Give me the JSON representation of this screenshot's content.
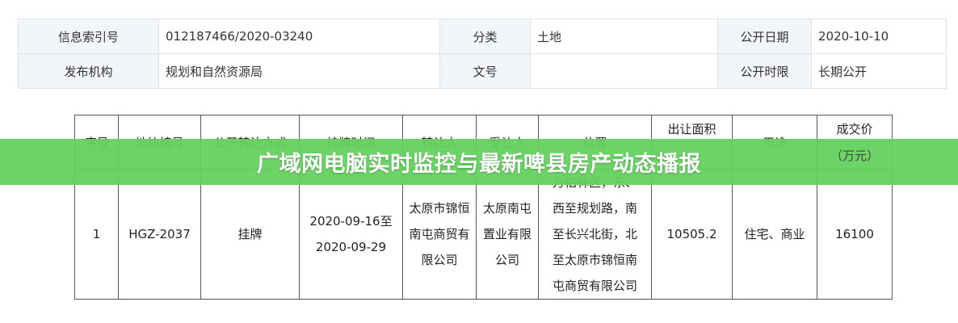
{
  "info": {
    "rows": [
      [
        {
          "label": "信息索引号",
          "value": "012187466/2020-03240"
        },
        {
          "label": "分类",
          "value": "土地"
        },
        {
          "label": "公开日期",
          "value": "2020-10-10"
        }
      ],
      [
        {
          "label": "发布机构",
          "value": "规划和自然资源局"
        },
        {
          "label": "文号",
          "value": ""
        },
        {
          "label": "公开时限",
          "value": "长期公开"
        }
      ]
    ]
  },
  "land_table": {
    "headers": {
      "seq": "序号",
      "parcel": "地块编号",
      "method": "公开转让方式",
      "time": "挂牌时间",
      "transferor": "转让人",
      "transferee": "受让人",
      "location": "位置",
      "area": "出让面积",
      "use": "用途",
      "price": "成交价",
      "price_unit": "（万元）"
    },
    "row": {
      "seq": "1",
      "parcel": "HGZ-2037",
      "method": "挂牌",
      "time": [
        "2020-09-16至",
        "2020-09-29"
      ],
      "transferor": [
        "太原市锦恒",
        "南屯商贸有",
        "限公司"
      ],
      "transferee": [
        "太原南屯",
        "置业有限",
        "公司"
      ],
      "location": [
        "万柏林区，东、",
        "西至规划路，南",
        "至长兴北街，北",
        "至太原市锦恒南",
        "屯商贸有限公司"
      ],
      "area": "10505.2",
      "use": "住宅、商业",
      "price": "16100"
    }
  },
  "banner": {
    "title": "广域网电脑实时监控与最新啤县房产动态播报",
    "color": "#6dd46a"
  }
}
